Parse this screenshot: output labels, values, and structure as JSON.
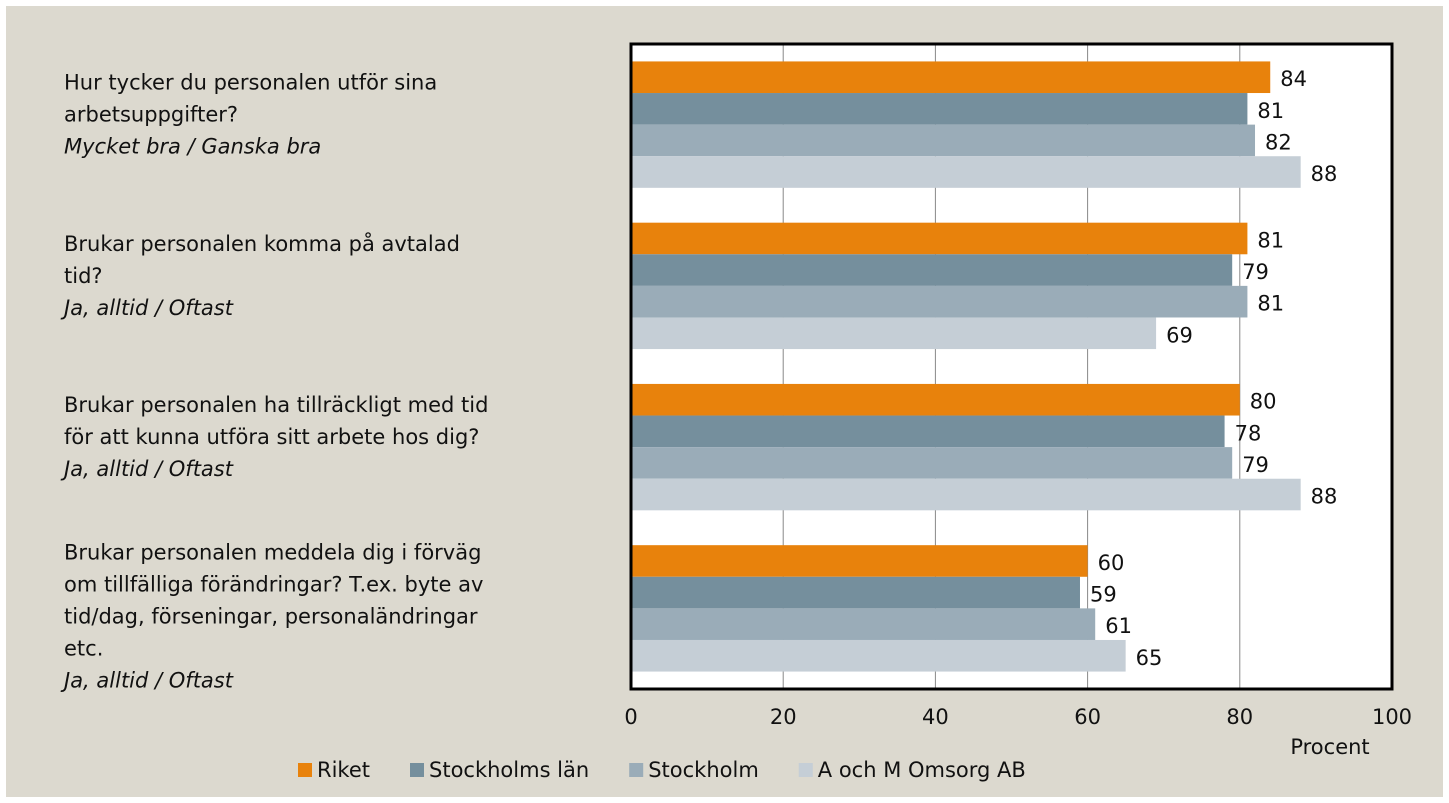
{
  "chart_data": {
    "type": "bar",
    "orientation": "horizontal",
    "categories": [
      {
        "lines": [
          "Hur tycker du personalen utför sina",
          "arbetsuppgifter?"
        ],
        "note": "Mycket bra / Ganska bra"
      },
      {
        "lines": [
          "Brukar personalen komma på avtalad",
          "tid?"
        ],
        "note": "Ja, alltid / Oftast"
      },
      {
        "lines": [
          "Brukar personalen ha tillräckligt med tid",
          "för att kunna utföra sitt arbete hos dig?"
        ],
        "note": "Ja, alltid / Oftast"
      },
      {
        "lines": [
          "Brukar personalen meddela dig i förväg",
          "om tillfälliga förändringar? T.ex. byte av",
          "tid/dag, förseningar, personaländringar",
          "etc."
        ],
        "note": "Ja, alltid / Oftast"
      }
    ],
    "series": [
      {
        "name": "Riket",
        "color": "#e8820c",
        "values": [
          84,
          81,
          80,
          60
        ]
      },
      {
        "name": "Stockholms län",
        "color": "#758f9d",
        "values": [
          81,
          79,
          78,
          59
        ]
      },
      {
        "name": "Stockholm",
        "color": "#9aacb8",
        "values": [
          82,
          81,
          79,
          61
        ]
      },
      {
        "name": "A och M Omsorg AB",
        "color": "#c5ced6",
        "values": [
          88,
          69,
          88,
          65
        ]
      }
    ],
    "xlabel": "Procent",
    "xlim": [
      0,
      100
    ],
    "xticks": [
      0,
      20,
      40,
      60,
      80,
      100
    ],
    "grid": true,
    "legend": "bottom"
  }
}
